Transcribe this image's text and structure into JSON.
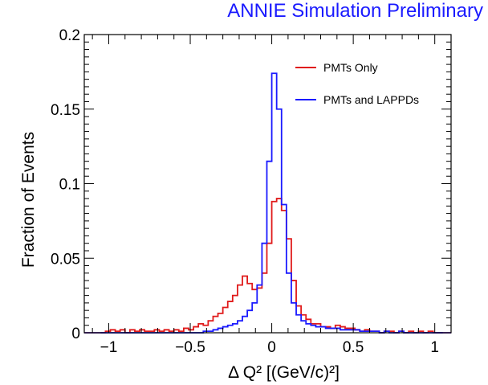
{
  "banner": "ANNIE Simulation Preliminary",
  "chart_data": {
    "type": "line",
    "xlabel": "Δ Q² [(GeV/c)²]",
    "ylabel": "Fraction of Events",
    "xlim": [
      -1.15,
      1.1
    ],
    "ylim": [
      0,
      0.2
    ],
    "xticks": [
      -1,
      -0.5,
      0,
      0.5,
      1
    ],
    "xtick_labels": [
      "−1",
      "−0.5",
      "0",
      "0.5",
      "1"
    ],
    "yticks": [
      0,
      0.05,
      0.1,
      0.15,
      0.2
    ],
    "ytick_labels": [
      "0",
      "0.05",
      "0.1",
      "0.15",
      "0.2"
    ],
    "legend_position": "top-right",
    "series": [
      {
        "name": "PMTs Only",
        "color": "#e01b1b",
        "bin_edges": [
          -1.05,
          -1.02,
          -0.99,
          -0.96,
          -0.93,
          -0.9,
          -0.87,
          -0.84,
          -0.81,
          -0.78,
          -0.75,
          -0.72,
          -0.69,
          -0.66,
          -0.63,
          -0.6,
          -0.57,
          -0.54,
          -0.51,
          -0.48,
          -0.45,
          -0.42,
          -0.39,
          -0.36,
          -0.33,
          -0.3,
          -0.27,
          -0.24,
          -0.21,
          -0.18,
          -0.15,
          -0.12,
          -0.09,
          -0.06,
          -0.03,
          0.0,
          0.03,
          0.06,
          0.09,
          0.12,
          0.15,
          0.18,
          0.21,
          0.24,
          0.27,
          0.3,
          0.33,
          0.36,
          0.39,
          0.42,
          0.45,
          0.48,
          0.51,
          0.54,
          0.57,
          0.6,
          0.63,
          0.66,
          0.69,
          0.72,
          0.75,
          0.78,
          0.81,
          0.84,
          0.87,
          0.9,
          0.93,
          0.96,
          0.99,
          1.02,
          1.05
        ],
        "values": [
          0.0,
          0.001,
          0.002,
          0.001,
          0.002,
          0.0,
          0.002,
          0.001,
          0.002,
          0.001,
          0.001,
          0.002,
          0.001,
          0.002,
          0.001,
          0.002,
          0.001,
          0.003,
          0.002,
          0.004,
          0.006,
          0.005,
          0.008,
          0.011,
          0.013,
          0.017,
          0.021,
          0.025,
          0.032,
          0.038,
          0.033,
          0.029,
          0.03,
          0.04,
          0.06,
          0.088,
          0.09,
          0.082,
          0.063,
          0.035,
          0.018,
          0.012,
          0.009,
          0.006,
          0.006,
          0.004,
          0.004,
          0.003,
          0.005,
          0.004,
          0.003,
          0.003,
          0.002,
          0.001,
          0.002,
          0.001,
          0.001,
          0.0,
          0.001,
          0.001,
          0.0,
          0.001,
          0.0,
          0.001,
          0.0,
          0.001,
          0.0,
          0.001,
          0.0,
          0.0
        ]
      },
      {
        "name": "PMTs and LAPPDs",
        "color": "#1a1aff",
        "bin_edges": [
          -1.05,
          -1.02,
          -0.99,
          -0.96,
          -0.93,
          -0.9,
          -0.87,
          -0.84,
          -0.81,
          -0.78,
          -0.75,
          -0.72,
          -0.69,
          -0.66,
          -0.63,
          -0.6,
          -0.57,
          -0.54,
          -0.51,
          -0.48,
          -0.45,
          -0.42,
          -0.39,
          -0.36,
          -0.33,
          -0.3,
          -0.27,
          -0.24,
          -0.21,
          -0.18,
          -0.15,
          -0.12,
          -0.09,
          -0.06,
          -0.03,
          0.0,
          0.03,
          0.06,
          0.09,
          0.12,
          0.15,
          0.18,
          0.21,
          0.24,
          0.27,
          0.3,
          0.33,
          0.36,
          0.39,
          0.42,
          0.45,
          0.48,
          0.51,
          0.54,
          0.57,
          0.6,
          0.63,
          0.66,
          0.69,
          0.72,
          0.75,
          0.78,
          0.81,
          0.84,
          0.87,
          0.9,
          0.93,
          0.96,
          0.99,
          1.02,
          1.05
        ],
        "values": [
          0.0,
          0.0,
          0.0,
          0.0,
          0.0,
          0.0,
          0.0,
          0.0,
          0.0,
          0.0,
          0.0,
          0.0,
          0.0,
          0.0,
          0.0,
          0.0,
          0.0,
          0.0,
          0.0,
          0.0,
          0.0,
          0.001,
          0.001,
          0.002,
          0.003,
          0.004,
          0.005,
          0.006,
          0.008,
          0.011,
          0.015,
          0.02,
          0.032,
          0.06,
          0.115,
          0.174,
          0.15,
          0.086,
          0.04,
          0.02,
          0.012,
          0.008,
          0.006,
          0.005,
          0.004,
          0.004,
          0.003,
          0.003,
          0.003,
          0.002,
          0.002,
          0.002,
          0.002,
          0.001,
          0.001,
          0.001,
          0.001,
          0.0,
          0.001,
          0.0,
          0.0,
          0.001,
          0.0,
          0.0,
          0.0,
          0.0,
          0.0,
          0.0,
          0.0,
          0.0
        ]
      }
    ]
  }
}
